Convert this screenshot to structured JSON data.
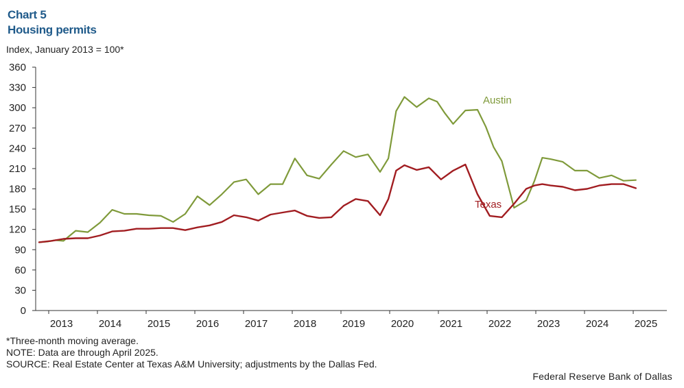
{
  "header": {
    "chart_number": "Chart 5",
    "title": "Housing permits",
    "y_unit": "Index, January 2013 = 100*"
  },
  "notes": [
    "*Three-month moving average.",
    "NOTE: Data are through April 2025.",
    "SOURCE: Real Estate Center at Texas A&M University; adjustments by the Dallas Fed."
  ],
  "credit": "Federal Reserve Bank of Dallas",
  "colors": {
    "austin": "#7f9a3a",
    "texas": "#a11d21",
    "axis": "#333333",
    "text": "#222222"
  },
  "chart_data": {
    "type": "line",
    "title": "Housing permits",
    "ylabel": "Index, January 2013 = 100*",
    "xlabel": "",
    "ylim": [
      0,
      360
    ],
    "yticks": [
      0,
      30,
      60,
      90,
      120,
      150,
      180,
      210,
      240,
      270,
      300,
      330,
      360
    ],
    "xlim": [
      2013.0,
      2025.0
    ],
    "x_tick_labels": [
      "2013",
      "2014",
      "2015",
      "2016",
      "2017",
      "2018",
      "2019",
      "2020",
      "2021",
      "2022",
      "2023",
      "2024",
      "2025"
    ],
    "grid": false,
    "legend": "direct labels",
    "series": [
      {
        "name": "Austin",
        "x": [
          2013.0,
          2013.17,
          2013.33,
          2013.5,
          2013.75,
          2014.0,
          2014.25,
          2014.5,
          2014.75,
          2015.0,
          2015.25,
          2015.5,
          2015.75,
          2016.0,
          2016.25,
          2016.5,
          2016.75,
          2017.0,
          2017.25,
          2017.5,
          2017.75,
          2018.0,
          2018.25,
          2018.5,
          2018.75,
          2019.0,
          2019.25,
          2019.5,
          2019.75,
          2020.0,
          2020.17,
          2020.33,
          2020.5,
          2020.75,
          2021.0,
          2021.17,
          2021.33,
          2021.5,
          2021.75,
          2022.0,
          2022.17,
          2022.33,
          2022.5,
          2022.75,
          2023.0,
          2023.17,
          2023.33,
          2023.5,
          2023.75,
          2024.0,
          2024.25,
          2024.5,
          2024.75,
          2025.0,
          2025.25
        ],
        "values": [
          101,
          102,
          104,
          103,
          118,
          116,
          130,
          149,
          143,
          143,
          141,
          140,
          131,
          143,
          169,
          156,
          172,
          190,
          194,
          172,
          187,
          187,
          225,
          200,
          195,
          216,
          236,
          227,
          231,
          205,
          225,
          295,
          316,
          301,
          314,
          309,
          292,
          276,
          296,
          297,
          272,
          242,
          221,
          152,
          163,
          192,
          226,
          224,
          220,
          207,
          207,
          196,
          200,
          192,
          193
        ]
      },
      {
        "name": "Texas",
        "x": [
          2013.0,
          2013.25,
          2013.5,
          2013.75,
          2014.0,
          2014.25,
          2014.5,
          2014.75,
          2015.0,
          2015.25,
          2015.5,
          2015.75,
          2016.0,
          2016.25,
          2016.5,
          2016.75,
          2017.0,
          2017.25,
          2017.5,
          2017.75,
          2018.0,
          2018.25,
          2018.5,
          2018.75,
          2019.0,
          2019.25,
          2019.5,
          2019.75,
          2020.0,
          2020.17,
          2020.33,
          2020.5,
          2020.75,
          2021.0,
          2021.25,
          2021.5,
          2021.75,
          2022.0,
          2022.25,
          2022.5,
          2022.75,
          2023.0,
          2023.17,
          2023.33,
          2023.5,
          2023.75,
          2024.0,
          2024.25,
          2024.5,
          2024.75,
          2025.0,
          2025.25
        ],
        "values": [
          101,
          103,
          106,
          107,
          107,
          111,
          117,
          118,
          121,
          121,
          122,
          122,
          119,
          123,
          126,
          131,
          141,
          138,
          133,
          142,
          145,
          148,
          140,
          137,
          138,
          155,
          165,
          162,
          141,
          165,
          207,
          215,
          208,
          212,
          194,
          207,
          216,
          172,
          140,
          138,
          158,
          180,
          185,
          187,
          185,
          183,
          178,
          180,
          185,
          187,
          187,
          181
        ]
      }
    ],
    "annotations": [
      {
        "text": "Austin",
        "series": "Austin"
      },
      {
        "text": "Texas",
        "series": "Texas"
      }
    ]
  }
}
